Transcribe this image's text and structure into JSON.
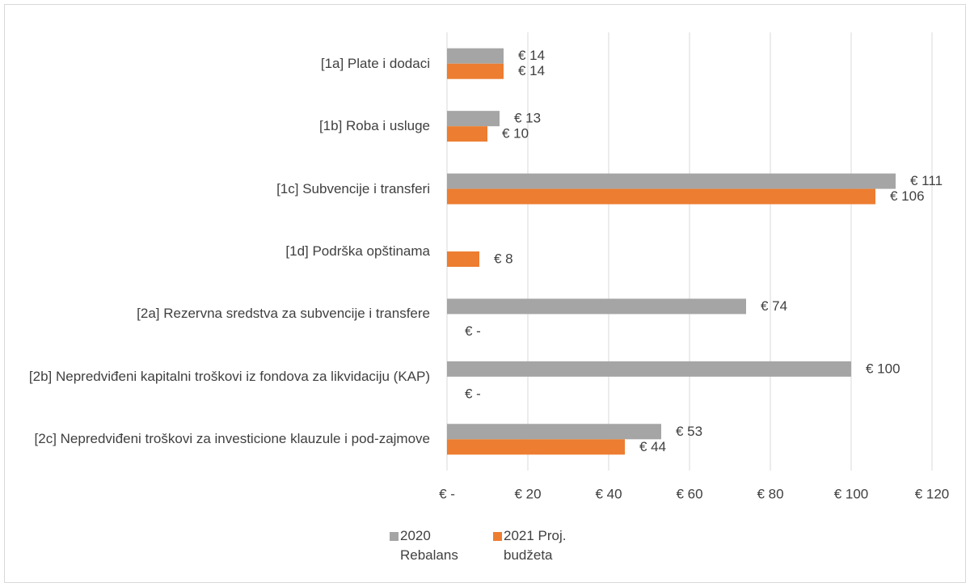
{
  "chart_data": {
    "type": "bar",
    "orientation": "horizontal",
    "categories": [
      "[1a] Plate i dodaci",
      "[1b] Roba i usluge",
      "[1c] Subvencije i transferi",
      "[1d] Podrška opštinama",
      "[2a] Rezervna sredstva za subvencije i transfere",
      "[2b] Nepredviđeni kapitalni troškovi iz fondova za likvidaciju (KAP)",
      "[2c] Nepredviđeni troškovi za investicione klauzule i pod-zajmove"
    ],
    "series": [
      {
        "name": "2020 Rebalans",
        "color": "#a5a5a5",
        "values": [
          14,
          13,
          111,
          null,
          74,
          100,
          53
        ],
        "value_labels": [
          "€ 14",
          "€ 13",
          "€ 111",
          null,
          "€ 74",
          "€ 100",
          "€ 53"
        ]
      },
      {
        "name": "2021 Proj. budžeta",
        "color": "#ed7d31",
        "values": [
          14,
          10,
          106,
          8,
          0,
          0,
          44
        ],
        "value_labels": [
          "€ 14",
          "€ 10",
          "€ 106",
          "€ 8",
          "€ -",
          "€ -",
          "€ 44"
        ]
      }
    ],
    "xlim": [
      0,
      120
    ],
    "xticks": [
      {
        "value": 0,
        "label": "€ -"
      },
      {
        "value": 20,
        "label": "€ 20"
      },
      {
        "value": 40,
        "label": "€ 40"
      },
      {
        "value": 60,
        "label": "€ 60"
      },
      {
        "value": 80,
        "label": "€ 80"
      },
      {
        "value": 100,
        "label": "€ 100"
      },
      {
        "value": 120,
        "label": "€ 120"
      }
    ],
    "grid": true,
    "legend": "bottom"
  }
}
